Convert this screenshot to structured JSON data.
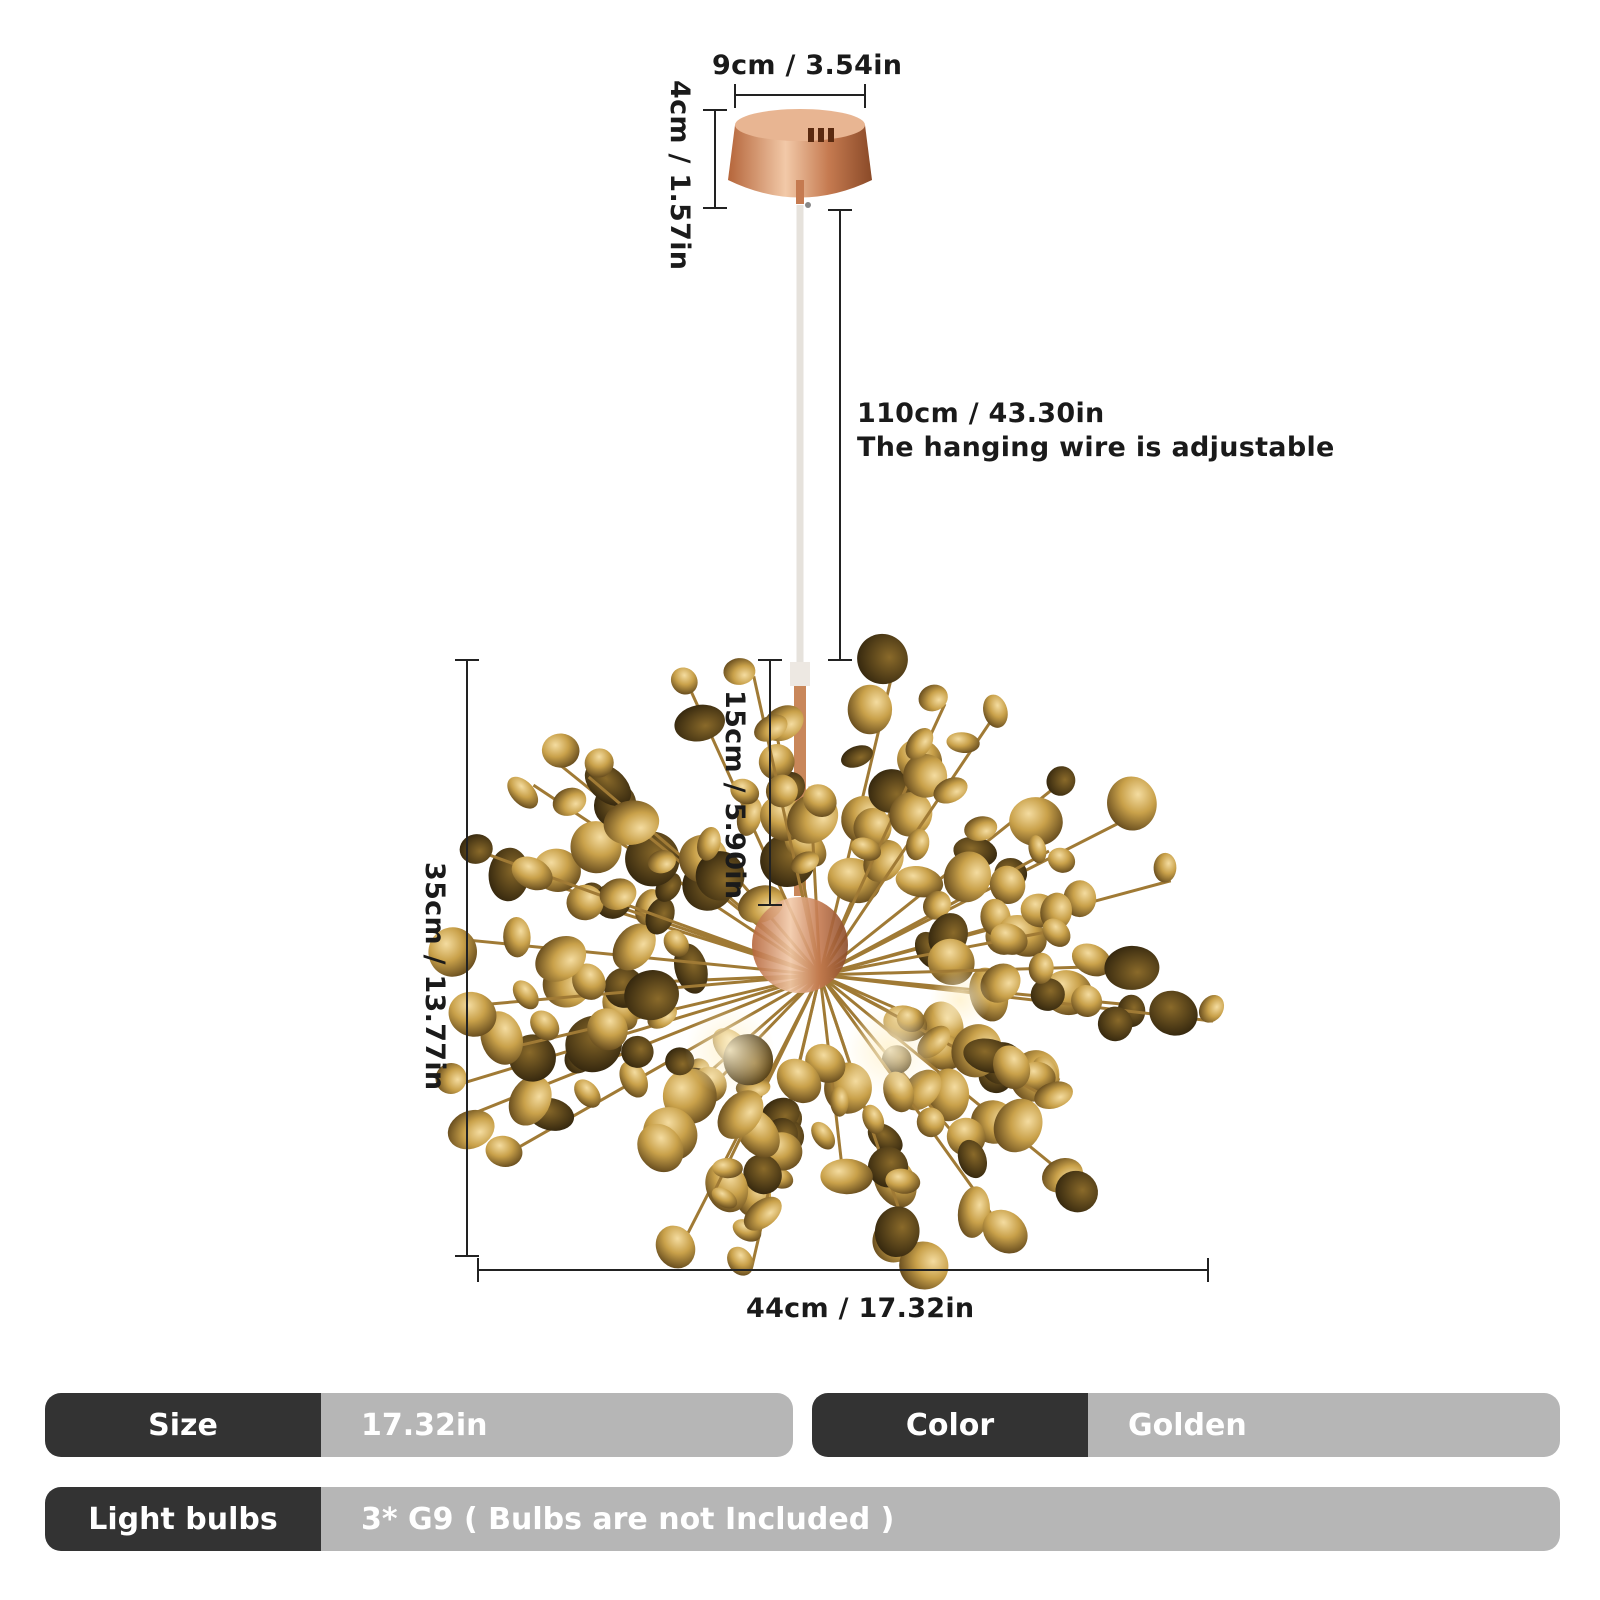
{
  "dimensions": {
    "canopy_width": "9cm / 3.54in",
    "canopy_height": "4cm / 1.57in",
    "wire_length": "110cm / 43.30in",
    "wire_note": "The hanging wire is adjustable",
    "rod_length": "15cm / 5.90in",
    "fixture_height": "35cm / 13.77in",
    "fixture_width": "44cm / 17.32in"
  },
  "specs": {
    "size": {
      "label": "Size",
      "value": "17.32in"
    },
    "color": {
      "label": "Color",
      "value": "Golden"
    },
    "bulbs": {
      "label": "Light bulbs",
      "value": "3* G9 ( Bulbs are not Included )"
    }
  },
  "colors": {
    "gold": "#c9a14a",
    "gold_dark": "#6b5020",
    "label_dark": "#333333",
    "label_light": "#b6b6b6"
  }
}
